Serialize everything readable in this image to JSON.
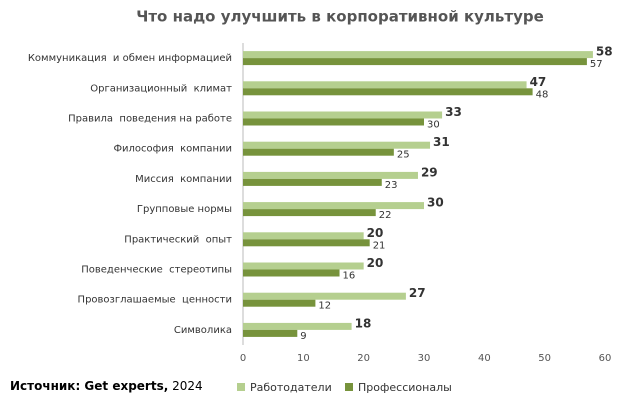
{
  "chart_data": {
    "type": "bar",
    "orientation": "horizontal",
    "title": "Что надо улучшить в корпоративной культуре",
    "categories": [
      "Коммуникация  и обмен информацией",
      "Организационный  климат",
      "Правила  поведения на работе",
      "Философия  компании",
      "Миссия  компании",
      "Групповые нормы",
      "Практический  опыт",
      "Поведенческие  стереотипы",
      "Провозглашаемые  ценности",
      "Символика"
    ],
    "series": [
      {
        "name": "Работодатели",
        "color": "#b5cf8f",
        "values": [
          58,
          47,
          33,
          31,
          29,
          30,
          20,
          20,
          27,
          18
        ]
      },
      {
        "name": "Профессионалы",
        "color": "#77933c",
        "values": [
          57,
          48,
          30,
          25,
          23,
          22,
          21,
          16,
          12,
          9
        ]
      }
    ],
    "xlim": [
      0,
      60
    ],
    "xticks": [
      0,
      10,
      20,
      30,
      40,
      50,
      60
    ],
    "source": {
      "label": "Источник: Get experts,",
      "year": "2024"
    }
  }
}
